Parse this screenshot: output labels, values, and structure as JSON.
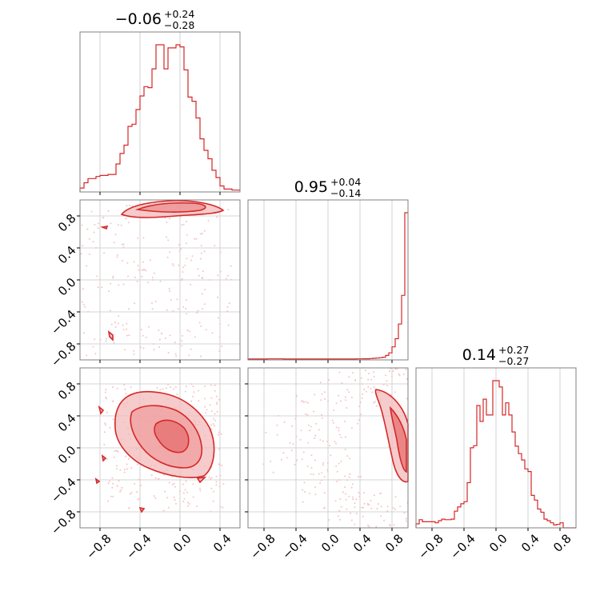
{
  "colors": {
    "main": "#d62728",
    "grid": "#c8c8c8",
    "frame": "#808080",
    "scatter": "#f4c4c4",
    "fill": "#f3b9b9"
  },
  "chart_data": {
    "type": "corner",
    "titles": [
      {
        "value": "−0.06",
        "plus": "+0.24",
        "minus": "−0.28"
      },
      {
        "value": "0.95",
        "plus": "+0.04",
        "minus": "−0.14"
      },
      {
        "value": "0.14",
        "plus": "+0.27",
        "minus": "−0.27"
      }
    ],
    "tick_labels": {
      "x0": [
        "−0.8",
        "−0.4",
        "0.0",
        "0.4"
      ],
      "x1": [
        "−0.8",
        "−0.4",
        "0.0",
        "0.4",
        "0.8"
      ],
      "x2": [
        "−0.8",
        "−0.4",
        "0.0",
        "0.4",
        "0.8"
      ],
      "y1": [
        "0.8",
        "0.4",
        "0.0",
        "−0.4",
        "−0.8"
      ],
      "y2": [
        "0.8",
        "0.4",
        "0.0",
        "−0.4",
        "−0.8"
      ]
    },
    "ranges": {
      "p0": [
        -1.0,
        0.6
      ],
      "p1": [
        -1.0,
        1.0
      ],
      "p2": [
        -1.0,
        1.0
      ]
    },
    "hist_p0": {
      "edges_start": -1.0,
      "bin_width": 0.04,
      "counts": [
        3,
        8,
        12,
        12,
        14,
        15,
        15,
        16,
        16,
        26,
        36,
        44,
        62,
        64,
        78,
        91,
        100,
        99,
        117,
        140,
        140,
        117,
        137,
        137,
        140,
        138,
        116,
        90,
        86,
        70,
        50,
        39,
        31,
        20,
        13,
        5,
        2,
        2,
        1,
        1
      ]
    },
    "hist_p1": {
      "edges_start": -1.0,
      "bin_width": 0.04,
      "counts": [
        1,
        1,
        1,
        1,
        1,
        1,
        2,
        2,
        2,
        2,
        2,
        1,
        1,
        1,
        1,
        1,
        1,
        1,
        1,
        1,
        1,
        1,
        1,
        1,
        1,
        1,
        1,
        1,
        1,
        1,
        1,
        1,
        1,
        1,
        2,
        2,
        3,
        3,
        5,
        8,
        10,
        13,
        18,
        35,
        60,
        117,
        195,
        335,
        610,
        1400
      ]
    },
    "hist_p2": {
      "edges_start": -1.0,
      "bin_width": 0.04,
      "counts": [
        6,
        14,
        10,
        10,
        10,
        10,
        8,
        12,
        15,
        14,
        14,
        15,
        30,
        38,
        44,
        48,
        84,
        150,
        154,
        230,
        200,
        242,
        212,
        212,
        277,
        277,
        265,
        212,
        235,
        212,
        180,
        153,
        139,
        127,
        110,
        105,
        60,
        51,
        34,
        28,
        15,
        12,
        8,
        4,
        5,
        8,
        0,
        0,
        0,
        0
      ]
    }
  }
}
